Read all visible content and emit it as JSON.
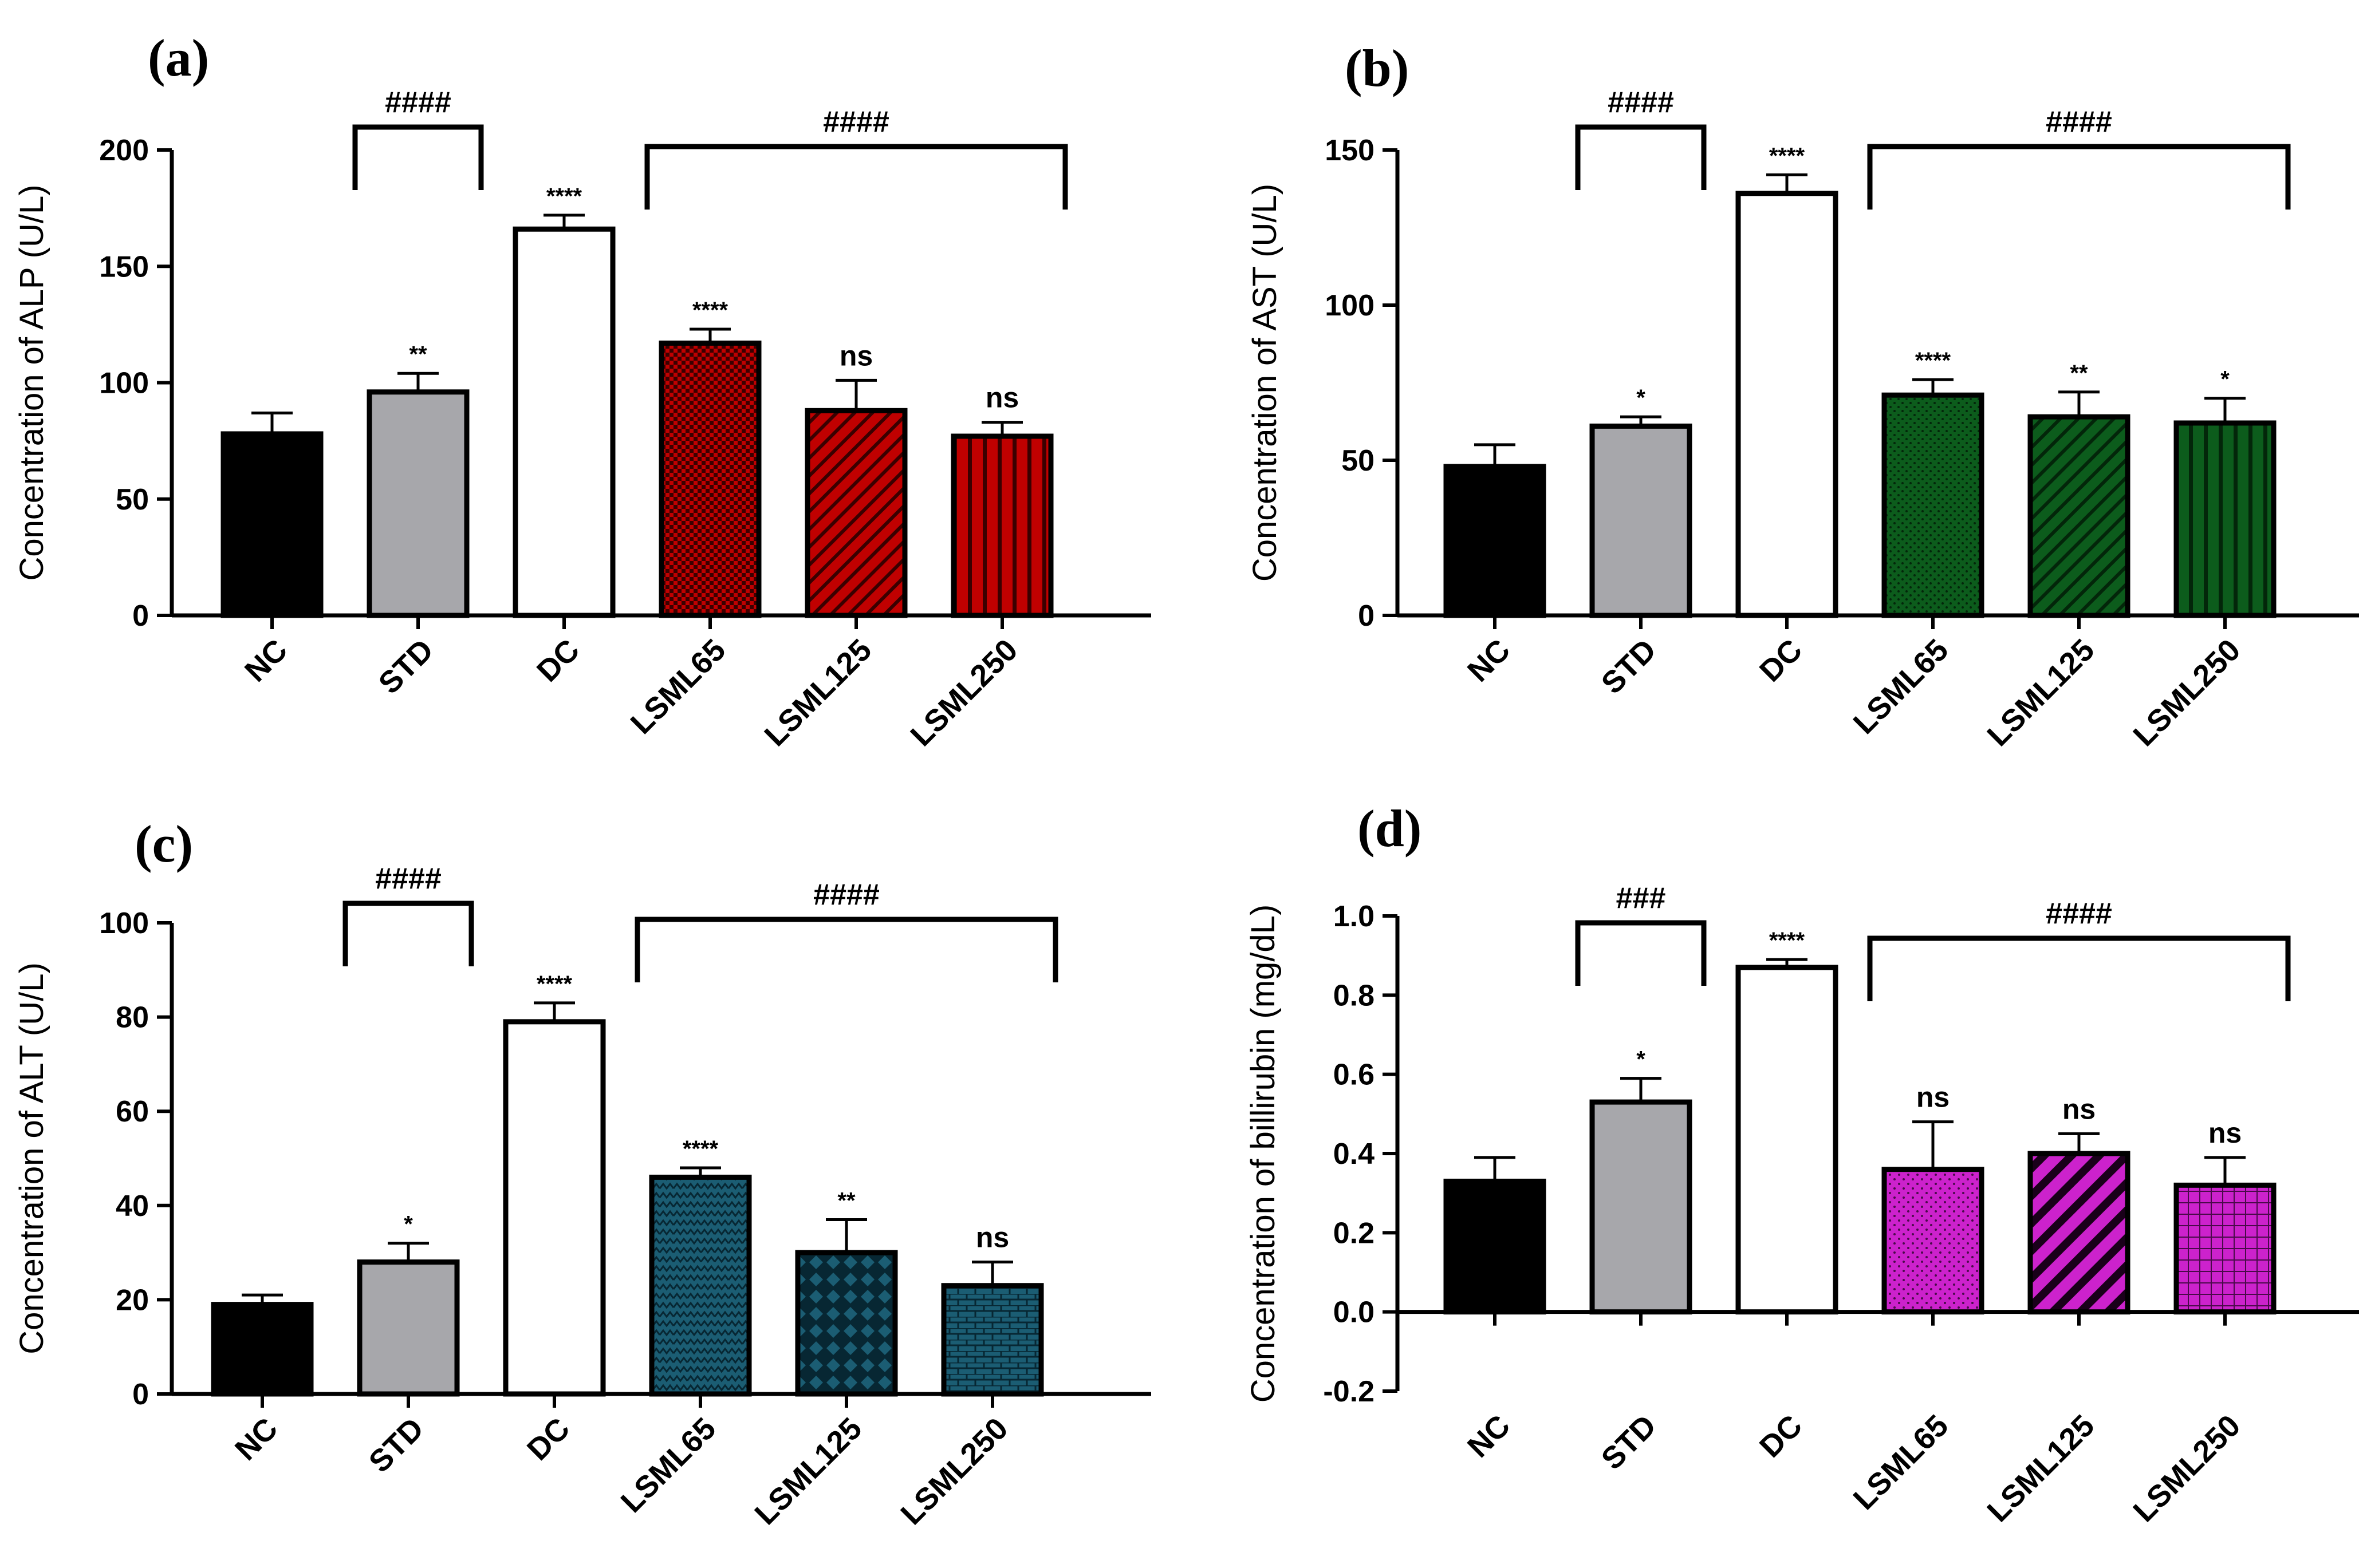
{
  "figure": {
    "categories": [
      "NC",
      "STD",
      "DC",
      "LSML65",
      "LSML125",
      "LSML250"
    ]
  },
  "chart_data": [
    {
      "panel": "(a)",
      "type": "bar",
      "ylabel": "Concentration of ALP (U/L)",
      "ylim": [
        0,
        200
      ],
      "yticks": [
        0,
        50,
        100,
        150,
        200
      ],
      "categories": [
        "NC",
        "STD",
        "DC",
        "LSML65",
        "LSML125",
        "LSML250"
      ],
      "values": [
        78,
        96,
        166,
        117,
        88,
        77
      ],
      "errors": [
        9,
        8,
        6,
        6,
        13,
        6
      ],
      "significance": [
        "",
        "**",
        "****",
        "****",
        "ns",
        "ns"
      ],
      "bar_colors": [
        "#000000",
        "#a7a7ab",
        "#ffffff",
        "#c00000",
        "#c00000",
        "#c00000"
      ],
      "patterns": [
        "solid",
        "solid",
        "solid",
        "checker",
        "diagonal",
        "vertical"
      ],
      "brackets": [
        {
          "from": 1,
          "to": 1,
          "label": "####"
        },
        {
          "from": 3,
          "to": 5,
          "label": "####"
        }
      ]
    },
    {
      "panel": "(b)",
      "type": "bar",
      "ylabel": "Concentration of AST (U/L)",
      "ylim": [
        0,
        150
      ],
      "yticks": [
        0,
        50,
        100,
        150
      ],
      "categories": [
        "NC",
        "STD",
        "DC",
        "LSML65",
        "LSML125",
        "LSML250"
      ],
      "values": [
        48,
        61,
        136,
        71,
        64,
        62
      ],
      "errors": [
        7,
        3,
        6,
        5,
        8,
        8
      ],
      "significance": [
        "",
        "*",
        "****",
        "****",
        "**",
        "*"
      ],
      "bar_colors": [
        "#000000",
        "#a7a7ab",
        "#ffffff",
        "#0c5c1c",
        "#0c5c1c",
        "#0c5c1c"
      ],
      "patterns": [
        "solid",
        "solid",
        "solid",
        "dots",
        "diagonal",
        "vertical"
      ],
      "brackets": [
        {
          "from": 1,
          "to": 1,
          "label": "####"
        },
        {
          "from": 3,
          "to": 5,
          "label": "####"
        }
      ]
    },
    {
      "panel": "(c)",
      "type": "bar",
      "ylabel": "Concentration of ALT (U/L)",
      "ylim": [
        0,
        100
      ],
      "yticks": [
        0,
        20,
        40,
        60,
        80,
        100
      ],
      "categories": [
        "NC",
        "STD",
        "DC",
        "LSML65",
        "LSML125",
        "LSML250"
      ],
      "values": [
        19,
        28,
        79,
        46,
        30,
        23
      ],
      "errors": [
        2,
        4,
        4,
        2,
        7,
        5
      ],
      "significance": [
        "",
        "*",
        "****",
        "****",
        "**",
        "ns"
      ],
      "bar_colors": [
        "#000000",
        "#a7a7ab",
        "#ffffff",
        "#1b5d73",
        "#1b5d73",
        "#1b5d73"
      ],
      "patterns": [
        "solid",
        "solid",
        "solid",
        "zigzag",
        "diamond",
        "brick"
      ],
      "brackets": [
        {
          "from": 1,
          "to": 1,
          "label": "####"
        },
        {
          "from": 3,
          "to": 5,
          "label": "####"
        }
      ]
    },
    {
      "panel": "(d)",
      "type": "bar",
      "ylabel": "Concentration of billirubin (mg/dL)",
      "ylim": [
        -0.2,
        1.0
      ],
      "yticks": [
        "-0.2",
        "0.0",
        "0.2",
        "0.4",
        "0.6",
        "0.8",
        "1.0"
      ],
      "categories": [
        "NC",
        "STD",
        "DC",
        "LSML65",
        "LSML125",
        "LSML250"
      ],
      "values": [
        0.33,
        0.53,
        0.87,
        0.36,
        0.4,
        0.32
      ],
      "errors": [
        0.06,
        0.06,
        0.02,
        0.12,
        0.05,
        0.07
      ],
      "significance": [
        "",
        "*",
        "****",
        "ns",
        "ns",
        "ns"
      ],
      "bar_colors": [
        "#000000",
        "#a7a7ab",
        "#ffffff",
        "#cc22cc",
        "#cc22cc",
        "#cc22cc"
      ],
      "patterns": [
        "solid",
        "solid",
        "solid",
        "dots",
        "diagonal",
        "grid"
      ],
      "brackets": [
        {
          "from": 1,
          "to": 1,
          "label": "###"
        },
        {
          "from": 3,
          "to": 5,
          "label": "####"
        }
      ]
    }
  ]
}
